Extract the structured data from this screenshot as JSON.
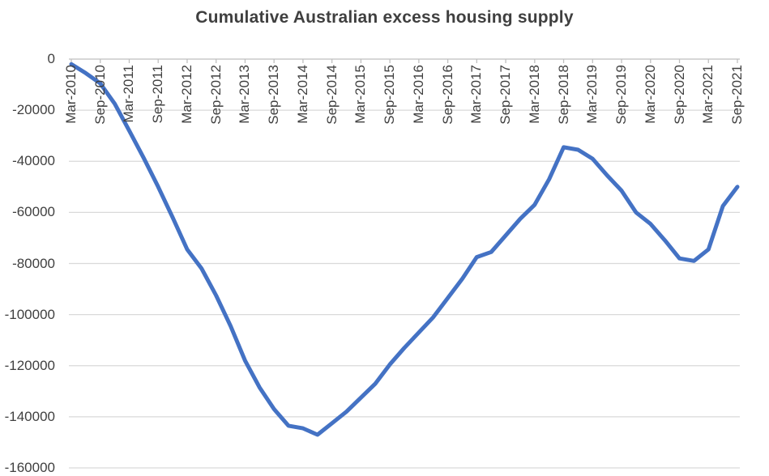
{
  "chart_data": {
    "type": "line",
    "title": "Cumulative Australian excess housing supply",
    "xlabel": "",
    "ylabel": "",
    "categories": [
      "Mar-2010",
      "Jun-2010",
      "Sep-2010",
      "Dec-2010",
      "Mar-2011",
      "Jun-2011",
      "Sep-2011",
      "Dec-2011",
      "Mar-2012",
      "Jun-2012",
      "Sep-2012",
      "Dec-2012",
      "Mar-2013",
      "Jun-2013",
      "Sep-2013",
      "Dec-2013",
      "Mar-2014",
      "Jun-2014",
      "Sep-2014",
      "Dec-2014",
      "Mar-2015",
      "Jun-2015",
      "Sep-2015",
      "Dec-2015",
      "Mar-2016",
      "Jun-2016",
      "Sep-2016",
      "Dec-2016",
      "Mar-2017",
      "Jun-2017",
      "Sep-2017",
      "Dec-2017",
      "Mar-2018",
      "Jun-2018",
      "Sep-2018",
      "Dec-2018",
      "Mar-2019",
      "Jun-2019",
      "Sep-2019",
      "Dec-2019",
      "Mar-2020",
      "Jun-2020",
      "Sep-2020",
      "Dec-2020",
      "Mar-2021",
      "Jun-2021",
      "Sep-2021"
    ],
    "values": [
      -2000,
      -5500,
      -9500,
      -17500,
      -28000,
      -38700,
      -50000,
      -62000,
      -74500,
      -82000,
      -92500,
      -104500,
      -118000,
      -128500,
      -137000,
      -143500,
      -144500,
      -147000,
      -142500,
      -138000,
      -132500,
      -127000,
      -119500,
      -113000,
      -107000,
      -101000,
      -93500,
      -86000,
      -77500,
      -75500,
      -69000,
      -62500,
      -57000,
      -47000,
      -34500,
      -35500,
      -39000,
      -45500,
      -51500,
      -60000,
      -64500,
      -71000,
      -78000,
      -79000,
      -74500,
      -57500,
      -50000
    ],
    "yticks": [
      0,
      -20000,
      -40000,
      -60000,
      -80000,
      -100000,
      -120000,
      -140000,
      -160000
    ],
    "ylim": [
      -160000,
      0
    ],
    "xtick_label_every": 2,
    "x_label_rotation_deg": -90,
    "grid": "horizontal",
    "legend": "none",
    "colors": {
      "line": "#4472C4",
      "gridline": "#D9D9D9",
      "axis_line": "#BFBFBF",
      "tick_mark": "#BFBFBF",
      "axis_text": "#404040",
      "title_text": "#3f3f3f",
      "background": "#ffffff"
    }
  }
}
